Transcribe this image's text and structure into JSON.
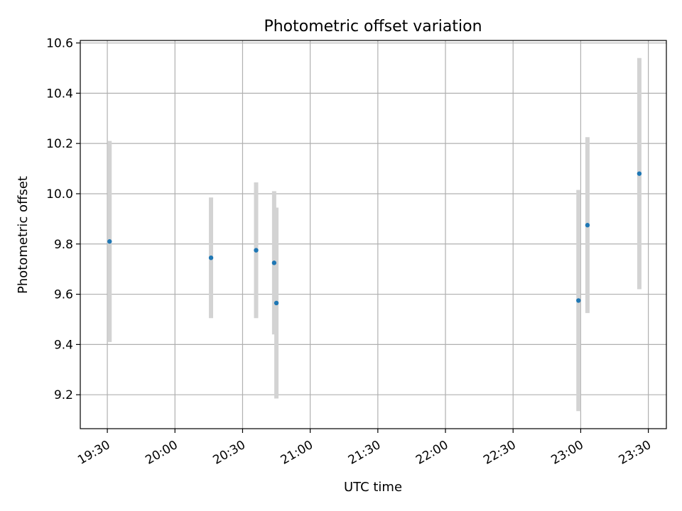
{
  "chart_data": {
    "type": "scatter",
    "title": "Photometric offset variation",
    "xlabel": "UTC time",
    "ylabel": "Photometric offset",
    "xlim": [
      "19:18",
      "23:38"
    ],
    "ylim": [
      9.065,
      10.61
    ],
    "grid": true,
    "x_ticks": [
      "19:30",
      "20:00",
      "20:30",
      "21:00",
      "21:30",
      "22:00",
      "22:30",
      "23:00",
      "23:30"
    ],
    "y_ticks": [
      9.2,
      9.4,
      9.6,
      9.8,
      10.0,
      10.2,
      10.4,
      10.6
    ],
    "y_tick_labels": [
      "9.2",
      "9.4",
      "9.6",
      "9.8",
      "10.0",
      "10.2",
      "10.4",
      "10.6"
    ],
    "marker_color": "#1f77b4",
    "errorbar_color": "#d3d3d3",
    "points": [
      {
        "t": "19:31",
        "y": 9.81,
        "err": 0.4
      },
      {
        "t": "20:16",
        "y": 9.745,
        "err": 0.24
      },
      {
        "t": "20:36",
        "y": 9.775,
        "err": 0.27
      },
      {
        "t": "20:44",
        "y": 9.725,
        "err": 0.285
      },
      {
        "t": "20:45",
        "y": 9.565,
        "err": 0.38
      },
      {
        "t": "22:59",
        "y": 9.575,
        "err": 0.44
      },
      {
        "t": "23:03",
        "y": 9.875,
        "err": 0.35
      },
      {
        "t": "23:26",
        "y": 10.08,
        "err": 0.46
      }
    ]
  }
}
